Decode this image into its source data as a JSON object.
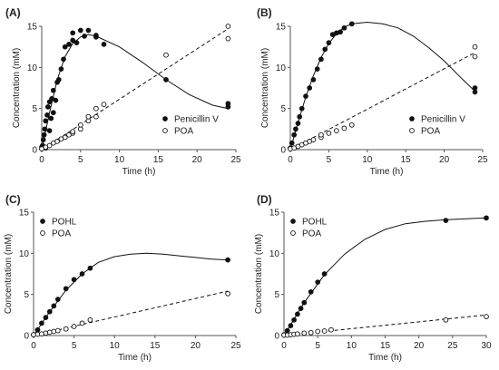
{
  "figure": {
    "panel_labels": [
      "(A)",
      "(B)",
      "(C)",
      "(D)"
    ]
  },
  "chart_data": [
    {
      "panel": "(A)",
      "type": "scatter",
      "xlabel": "Time (h)",
      "ylabel": "Concentration (mM)",
      "xlim": [
        0,
        25
      ],
      "ylim": [
        0,
        15
      ],
      "xticks": [
        0,
        5,
        10,
        15,
        20,
        25
      ],
      "yticks": [
        0,
        5,
        10,
        15
      ],
      "grid": false,
      "legend_position": "bottom-right",
      "series": [
        {
          "name": "Penicillin V",
          "marker": "filled-circle",
          "line": "solid",
          "points": [
            [
              0,
              0.3
            ],
            [
              0.1,
              0.5
            ],
            [
              0.2,
              1.2
            ],
            [
              0.3,
              1.8
            ],
            [
              0.4,
              2.5
            ],
            [
              0.5,
              0.2
            ],
            [
              0.5,
              3.5
            ],
            [
              0.7,
              4.2
            ],
            [
              0.8,
              5.2
            ],
            [
              1.0,
              2.3
            ],
            [
              1.0,
              5.8
            ],
            [
              1.2,
              3.8
            ],
            [
              1.3,
              6.2
            ],
            [
              1.5,
              4.5
            ],
            [
              1.5,
              7.2
            ],
            [
              1.8,
              6.0
            ],
            [
              2.0,
              8.2
            ],
            [
              2.2,
              8.5
            ],
            [
              2.5,
              9.8
            ],
            [
              2.8,
              11.0
            ],
            [
              3.0,
              12.5
            ],
            [
              3.5,
              12.8
            ],
            [
              4.0,
              13.3
            ],
            [
              4.0,
              14.2
            ],
            [
              4.5,
              13.0
            ],
            [
              5.0,
              14.5
            ],
            [
              5.5,
              13.8
            ],
            [
              6.0,
              14.5
            ],
            [
              7.0,
              13.7
            ],
            [
              7.0,
              13.9
            ],
            [
              8.0,
              12.8
            ],
            [
              16.0,
              8.5
            ],
            [
              24.0,
              5.2
            ],
            [
              24.0,
              5.6
            ]
          ],
          "fit": [
            [
              0,
              0
            ],
            [
              1,
              4.5
            ],
            [
              2,
              8.5
            ],
            [
              3,
              11.3
            ],
            [
              4,
              12.9
            ],
            [
              5,
              13.7
            ],
            [
              6,
              14.0
            ],
            [
              7,
              13.8
            ],
            [
              10,
              12.5
            ],
            [
              13,
              10.6
            ],
            [
              16,
              8.5
            ],
            [
              19,
              6.7
            ],
            [
              22,
              5.4
            ],
            [
              24,
              5.0
            ]
          ]
        },
        {
          "name": "POA",
          "marker": "open-circle",
          "line": "dashed",
          "points": [
            [
              0,
              0.1
            ],
            [
              0.5,
              0.3
            ],
            [
              1.0,
              0.5
            ],
            [
              1.5,
              0.8
            ],
            [
              2.0,
              1.0
            ],
            [
              2.5,
              1.3
            ],
            [
              3.0,
              1.5
            ],
            [
              3.5,
              1.8
            ],
            [
              4.0,
              2.0
            ],
            [
              4.0,
              2.2
            ],
            [
              5.0,
              2.5
            ],
            [
              5.0,
              3.0
            ],
            [
              6.0,
              3.5
            ],
            [
              6.0,
              4.0
            ],
            [
              7.0,
              4.0
            ],
            [
              7.0,
              5.0
            ],
            [
              8.0,
              5.5
            ],
            [
              16.0,
              11.5
            ],
            [
              24.0,
              13.5
            ],
            [
              24.0,
              15.0
            ]
          ],
          "fit": [
            [
              0,
              0
            ],
            [
              24,
              14.7
            ]
          ]
        }
      ]
    },
    {
      "panel": "(B)",
      "type": "scatter",
      "xlabel": "Time (h)",
      "ylabel": "Concentration (mM)",
      "xlim": [
        0,
        25
      ],
      "ylim": [
        0,
        15
      ],
      "xticks": [
        0,
        5,
        10,
        15,
        20,
        25
      ],
      "yticks": [
        0,
        5,
        10,
        15
      ],
      "grid": false,
      "legend_position": "bottom-right",
      "series": [
        {
          "name": "Penicillin V",
          "marker": "filled-circle",
          "line": "solid",
          "points": [
            [
              0,
              0.2
            ],
            [
              0.2,
              0.8
            ],
            [
              0.5,
              1.8
            ],
            [
              0.7,
              2.5
            ],
            [
              1.0,
              3.2
            ],
            [
              1.2,
              4.0
            ],
            [
              1.5,
              5.0
            ],
            [
              2.0,
              6.5
            ],
            [
              2.5,
              7.5
            ],
            [
              3.0,
              8.5
            ],
            [
              3.5,
              9.8
            ],
            [
              4.0,
              11.0
            ],
            [
              4.5,
              12.2
            ],
            [
              5.0,
              13.0
            ],
            [
              5.5,
              14.0
            ],
            [
              6.0,
              14.2
            ],
            [
              6.5,
              14.3
            ],
            [
              7.0,
              14.8
            ],
            [
              8.0,
              15.3
            ],
            [
              24.0,
              7.0
            ],
            [
              24.0,
              7.5
            ]
          ],
          "fit": [
            [
              0,
              0
            ],
            [
              1,
              3.3
            ],
            [
              2,
              6.4
            ],
            [
              3,
              9.0
            ],
            [
              4,
              11.2
            ],
            [
              5,
              12.9
            ],
            [
              6,
              14.1
            ],
            [
              7,
              14.9
            ],
            [
              8,
              15.3
            ],
            [
              10,
              15.5
            ],
            [
              12,
              15.3
            ],
            [
              14,
              14.8
            ],
            [
              16,
              13.8
            ],
            [
              18,
              12.4
            ],
            [
              20,
              10.8
            ],
            [
              22,
              8.9
            ],
            [
              24,
              7.1
            ]
          ]
        },
        {
          "name": "POA",
          "marker": "open-circle",
          "line": "dashed",
          "points": [
            [
              0,
              0.1
            ],
            [
              0.5,
              0.2
            ],
            [
              1.0,
              0.4
            ],
            [
              1.5,
              0.6
            ],
            [
              2.0,
              0.8
            ],
            [
              2.5,
              1.0
            ],
            [
              3.0,
              1.2
            ],
            [
              4.0,
              1.5
            ],
            [
              4.0,
              1.8
            ],
            [
              5.0,
              2.0
            ],
            [
              6.0,
              2.3
            ],
            [
              7.0,
              2.6
            ],
            [
              8.0,
              3.0
            ],
            [
              24.0,
              11.3
            ],
            [
              24.0,
              12.5
            ]
          ],
          "fit": [
            [
              0,
              0
            ],
            [
              24,
              11.8
            ]
          ]
        }
      ]
    },
    {
      "panel": "(C)",
      "type": "scatter",
      "xlabel": "Time (h)",
      "ylabel": "Concentration (mM)",
      "xlim": [
        0,
        25
      ],
      "ylim": [
        0,
        15
      ],
      "xticks": [
        0,
        5,
        10,
        15,
        20,
        25
      ],
      "yticks": [
        0,
        5,
        10,
        15
      ],
      "grid": false,
      "legend_position": "top-left",
      "series": [
        {
          "name": "POHL",
          "marker": "filled-circle",
          "line": "solid",
          "points": [
            [
              0,
              0.1
            ],
            [
              0.5,
              0.7
            ],
            [
              1.0,
              1.5
            ],
            [
              1.5,
              2.2
            ],
            [
              2.0,
              2.9
            ],
            [
              2.5,
              3.6
            ],
            [
              3.0,
              4.4
            ],
            [
              4.0,
              5.7
            ],
            [
              5.0,
              6.8
            ],
            [
              6.0,
              7.5
            ],
            [
              7.0,
              8.2
            ],
            [
              24.0,
              9.2
            ]
          ],
          "fit": [
            [
              0,
              0
            ],
            [
              2,
              2.9
            ],
            [
              4,
              5.5
            ],
            [
              6,
              7.5
            ],
            [
              8,
              8.9
            ],
            [
              10,
              9.6
            ],
            [
              12,
              9.9
            ],
            [
              14,
              10.0
            ],
            [
              16,
              9.9
            ],
            [
              18,
              9.7
            ],
            [
              20,
              9.5
            ],
            [
              22,
              9.3
            ],
            [
              24,
              9.2
            ]
          ]
        },
        {
          "name": "POA",
          "marker": "open-circle",
          "line": "dashed",
          "points": [
            [
              0,
              0.1
            ],
            [
              0.5,
              0.15
            ],
            [
              1.0,
              0.2
            ],
            [
              1.5,
              0.3
            ],
            [
              2.0,
              0.4
            ],
            [
              2.5,
              0.5
            ],
            [
              3.0,
              0.6
            ],
            [
              4.0,
              0.8
            ],
            [
              5.0,
              1.1
            ],
            [
              6.0,
              1.5
            ],
            [
              7.0,
              1.9
            ],
            [
              24.0,
              5.1
            ]
          ],
          "fit": [
            [
              0,
              0
            ],
            [
              24,
              5.4
            ]
          ]
        }
      ]
    },
    {
      "panel": "(D)",
      "type": "scatter",
      "xlabel": "Time (h)",
      "ylabel": "Concentration (mM)",
      "xlim": [
        0,
        30
      ],
      "ylim": [
        0,
        15
      ],
      "xticks": [
        0,
        5,
        10,
        15,
        20,
        25,
        30
      ],
      "yticks": [
        0,
        5,
        10,
        15
      ],
      "grid": false,
      "legend_position": "top-left",
      "series": [
        {
          "name": "POHL",
          "marker": "filled-circle",
          "line": "solid",
          "points": [
            [
              0,
              0.1
            ],
            [
              0.5,
              0.6
            ],
            [
              1.0,
              1.2
            ],
            [
              1.5,
              1.9
            ],
            [
              2.0,
              2.6
            ],
            [
              2.5,
              3.3
            ],
            [
              3.0,
              4.0
            ],
            [
              4.0,
              5.3
            ],
            [
              5.0,
              6.5
            ],
            [
              6.0,
              7.5
            ],
            [
              24.0,
              14.0
            ],
            [
              30.0,
              14.3
            ]
          ],
          "fit": [
            [
              0,
              0
            ],
            [
              3,
              4.0
            ],
            [
              6,
              7.4
            ],
            [
              9,
              9.9
            ],
            [
              12,
              11.7
            ],
            [
              15,
              12.9
            ],
            [
              18,
              13.6
            ],
            [
              21,
              13.9
            ],
            [
              24,
              14.1
            ],
            [
              27,
              14.2
            ],
            [
              30,
              14.3
            ]
          ]
        },
        {
          "name": "POA",
          "marker": "open-circle",
          "line": "dashed",
          "points": [
            [
              0,
              0.05
            ],
            [
              0.5,
              0.05
            ],
            [
              1.0,
              0.1
            ],
            [
              1.5,
              0.15
            ],
            [
              2.0,
              0.2
            ],
            [
              3.0,
              0.3
            ],
            [
              4.0,
              0.35
            ],
            [
              5.0,
              0.5
            ],
            [
              6.0,
              0.55
            ],
            [
              7.0,
              0.7
            ],
            [
              24.0,
              1.9
            ],
            [
              30.0,
              2.3
            ]
          ],
          "fit": [
            [
              0,
              0
            ],
            [
              30,
              2.5
            ]
          ]
        }
      ]
    }
  ]
}
